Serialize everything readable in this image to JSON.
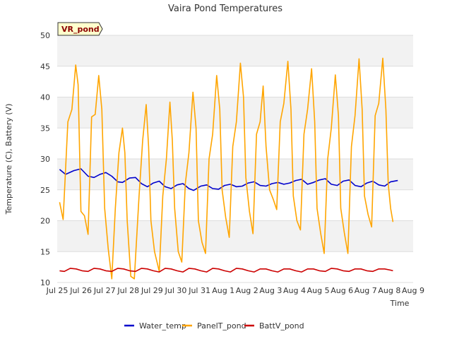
{
  "chart_data": {
    "type": "line",
    "title": "Vaira Pond Temperatures",
    "xlabel": "Time",
    "ylabel": "Temperature (C), Battery (V)",
    "site_label": "VR_pond",
    "ylim": [
      10,
      50
    ],
    "xlim": [
      0,
      15
    ],
    "yticks": [
      10,
      15,
      20,
      25,
      30,
      35,
      40,
      45,
      50
    ],
    "xticks": [
      {
        "x": 0,
        "label": "Jul 25"
      },
      {
        "x": 1,
        "label": "Jul 26"
      },
      {
        "x": 2,
        "label": "Jul 27"
      },
      {
        "x": 3,
        "label": "Jul 28"
      },
      {
        "x": 4,
        "label": "Jul 29"
      },
      {
        "x": 5,
        "label": "Jul 30"
      },
      {
        "x": 6,
        "label": "Jul 31"
      },
      {
        "x": 7,
        "label": "Aug 1"
      },
      {
        "x": 8,
        "label": "Aug 2"
      },
      {
        "x": 9,
        "label": "Aug 3"
      },
      {
        "x": 10,
        "label": "Aug 4"
      },
      {
        "x": 11,
        "label": "Aug 5"
      },
      {
        "x": 12,
        "label": "Aug 6"
      },
      {
        "x": 13,
        "label": "Aug 7"
      },
      {
        "x": 14,
        "label": "Aug 8"
      },
      {
        "x": 15,
        "label": "Aug 9"
      }
    ],
    "grid": true,
    "legend_position": "bottom",
    "series": [
      {
        "name": "Water_temp",
        "color": "#0000cc",
        "points": [
          [
            0.1,
            28.3
          ],
          [
            0.35,
            27.5
          ],
          [
            0.7,
            28.1
          ],
          [
            1.0,
            28.4
          ],
          [
            1.3,
            27.2
          ],
          [
            1.55,
            27.0
          ],
          [
            1.8,
            27.5
          ],
          [
            2.05,
            27.8
          ],
          [
            2.3,
            27.2
          ],
          [
            2.55,
            26.3
          ],
          [
            2.75,
            26.2
          ],
          [
            3.05,
            26.9
          ],
          [
            3.3,
            27.0
          ],
          [
            3.55,
            26.0
          ],
          [
            3.8,
            25.5
          ],
          [
            4.05,
            26.1
          ],
          [
            4.3,
            26.4
          ],
          [
            4.55,
            25.5
          ],
          [
            4.8,
            25.2
          ],
          [
            5.05,
            25.8
          ],
          [
            5.3,
            26.0
          ],
          [
            5.55,
            25.2
          ],
          [
            5.75,
            24.9
          ],
          [
            6.05,
            25.6
          ],
          [
            6.3,
            25.8
          ],
          [
            6.55,
            25.2
          ],
          [
            6.8,
            25.1
          ],
          [
            7.05,
            25.7
          ],
          [
            7.3,
            25.9
          ],
          [
            7.55,
            25.5
          ],
          [
            7.8,
            25.6
          ],
          [
            8.05,
            26.1
          ],
          [
            8.3,
            26.3
          ],
          [
            8.55,
            25.7
          ],
          [
            8.8,
            25.6
          ],
          [
            9.05,
            26.0
          ],
          [
            9.3,
            26.2
          ],
          [
            9.55,
            25.9
          ],
          [
            9.8,
            26.1
          ],
          [
            10.05,
            26.5
          ],
          [
            10.3,
            26.7
          ],
          [
            10.55,
            25.9
          ],
          [
            10.8,
            26.2
          ],
          [
            11.05,
            26.6
          ],
          [
            11.3,
            26.8
          ],
          [
            11.55,
            25.9
          ],
          [
            11.8,
            25.7
          ],
          [
            12.05,
            26.4
          ],
          [
            12.3,
            26.6
          ],
          [
            12.55,
            25.7
          ],
          [
            12.8,
            25.5
          ],
          [
            13.05,
            26.1
          ],
          [
            13.3,
            26.4
          ],
          [
            13.55,
            25.8
          ],
          [
            13.8,
            25.6
          ],
          [
            14.05,
            26.3
          ],
          [
            14.35,
            26.5
          ]
        ]
      },
      {
        "name": "PanelT_pond",
        "color": "#ffa500",
        "points": [
          [
            0.1,
            23.0
          ],
          [
            0.25,
            20.2
          ],
          [
            0.45,
            36.0
          ],
          [
            0.62,
            38.0
          ],
          [
            0.78,
            45.2
          ],
          [
            0.88,
            42.0
          ],
          [
            1.0,
            21.5
          ],
          [
            1.15,
            20.8
          ],
          [
            1.3,
            17.8
          ],
          [
            1.45,
            36.8
          ],
          [
            1.6,
            37.2
          ],
          [
            1.75,
            43.5
          ],
          [
            1.88,
            38.0
          ],
          [
            2.0,
            22.0
          ],
          [
            2.15,
            15.5
          ],
          [
            2.3,
            10.6
          ],
          [
            2.45,
            22.0
          ],
          [
            2.6,
            31.0
          ],
          [
            2.75,
            35.0
          ],
          [
            2.85,
            31.0
          ],
          [
            2.95,
            20.0
          ],
          [
            3.1,
            11.0
          ],
          [
            3.25,
            10.6
          ],
          [
            3.45,
            24.0
          ],
          [
            3.6,
            33.0
          ],
          [
            3.75,
            38.8
          ],
          [
            3.85,
            32.0
          ],
          [
            3.95,
            20.0
          ],
          [
            4.1,
            15.0
          ],
          [
            4.3,
            11.8
          ],
          [
            4.45,
            24.0
          ],
          [
            4.6,
            30.0
          ],
          [
            4.75,
            39.2
          ],
          [
            4.85,
            33.0
          ],
          [
            4.95,
            22.0
          ],
          [
            5.1,
            15.0
          ],
          [
            5.25,
            13.3
          ],
          [
            5.4,
            26.0
          ],
          [
            5.55,
            31.0
          ],
          [
            5.72,
            40.8
          ],
          [
            5.85,
            35.0
          ],
          [
            5.95,
            20.0
          ],
          [
            6.1,
            16.5
          ],
          [
            6.25,
            14.7
          ],
          [
            6.4,
            30.0
          ],
          [
            6.55,
            34.0
          ],
          [
            6.72,
            43.5
          ],
          [
            6.85,
            38.0
          ],
          [
            6.95,
            25.0
          ],
          [
            7.1,
            20.5
          ],
          [
            7.25,
            17.3
          ],
          [
            7.4,
            32.0
          ],
          [
            7.55,
            36.0
          ],
          [
            7.72,
            45.5
          ],
          [
            7.85,
            40.0
          ],
          [
            7.95,
            27.0
          ],
          [
            8.1,
            21.5
          ],
          [
            8.25,
            17.9
          ],
          [
            8.4,
            34.0
          ],
          [
            8.55,
            36.0
          ],
          [
            8.68,
            41.8
          ],
          [
            8.8,
            32.0
          ],
          [
            8.95,
            25.0
          ],
          [
            9.1,
            23.5
          ],
          [
            9.25,
            21.8
          ],
          [
            9.4,
            36.0
          ],
          [
            9.55,
            39.0
          ],
          [
            9.72,
            45.8
          ],
          [
            9.85,
            38.0
          ],
          [
            9.95,
            24.0
          ],
          [
            10.1,
            20.0
          ],
          [
            10.25,
            18.5
          ],
          [
            10.4,
            34.0
          ],
          [
            10.55,
            38.0
          ],
          [
            10.72,
            44.6
          ],
          [
            10.85,
            36.0
          ],
          [
            10.95,
            22.0
          ],
          [
            11.1,
            18.0
          ],
          [
            11.25,
            14.7
          ],
          [
            11.4,
            30.0
          ],
          [
            11.55,
            35.0
          ],
          [
            11.72,
            43.6
          ],
          [
            11.85,
            37.0
          ],
          [
            11.95,
            22.0
          ],
          [
            12.1,
            18.0
          ],
          [
            12.25,
            14.7
          ],
          [
            12.4,
            32.0
          ],
          [
            12.55,
            37.0
          ],
          [
            12.72,
            46.2
          ],
          [
            12.85,
            38.0
          ],
          [
            12.95,
            24.0
          ],
          [
            13.1,
            21.0
          ],
          [
            13.25,
            19.0
          ],
          [
            13.4,
            37.0
          ],
          [
            13.55,
            39.0
          ],
          [
            13.72,
            46.3
          ],
          [
            13.85,
            38.0
          ],
          [
            13.95,
            26.0
          ],
          [
            14.05,
            22.0
          ],
          [
            14.15,
            19.8
          ]
        ]
      },
      {
        "name": "BattV_pond",
        "color": "#cc0000",
        "points": [
          [
            0.1,
            11.9
          ],
          [
            0.3,
            11.8
          ],
          [
            0.55,
            12.3
          ],
          [
            0.8,
            12.2
          ],
          [
            1.05,
            11.9
          ],
          [
            1.3,
            11.8
          ],
          [
            1.55,
            12.3
          ],
          [
            1.8,
            12.2
          ],
          [
            2.05,
            11.9
          ],
          [
            2.3,
            11.8
          ],
          [
            2.55,
            12.3
          ],
          [
            2.8,
            12.2
          ],
          [
            3.05,
            11.9
          ],
          [
            3.3,
            11.8
          ],
          [
            3.55,
            12.3
          ],
          [
            3.8,
            12.2
          ],
          [
            4.05,
            11.9
          ],
          [
            4.3,
            11.7
          ],
          [
            4.55,
            12.3
          ],
          [
            4.8,
            12.2
          ],
          [
            5.05,
            11.9
          ],
          [
            5.3,
            11.7
          ],
          [
            5.55,
            12.3
          ],
          [
            5.8,
            12.2
          ],
          [
            6.05,
            11.9
          ],
          [
            6.3,
            11.7
          ],
          [
            6.55,
            12.3
          ],
          [
            6.8,
            12.2
          ],
          [
            7.05,
            11.9
          ],
          [
            7.3,
            11.7
          ],
          [
            7.55,
            12.3
          ],
          [
            7.8,
            12.2
          ],
          [
            8.05,
            11.9
          ],
          [
            8.3,
            11.7
          ],
          [
            8.55,
            12.2
          ],
          [
            8.8,
            12.2
          ],
          [
            9.05,
            11.9
          ],
          [
            9.3,
            11.7
          ],
          [
            9.55,
            12.2
          ],
          [
            9.8,
            12.2
          ],
          [
            10.05,
            11.9
          ],
          [
            10.3,
            11.7
          ],
          [
            10.55,
            12.2
          ],
          [
            10.8,
            12.2
          ],
          [
            11.05,
            11.9
          ],
          [
            11.3,
            11.8
          ],
          [
            11.55,
            12.3
          ],
          [
            11.8,
            12.2
          ],
          [
            12.05,
            11.9
          ],
          [
            12.3,
            11.8
          ],
          [
            12.55,
            12.2
          ],
          [
            12.8,
            12.2
          ],
          [
            13.05,
            11.9
          ],
          [
            13.3,
            11.8
          ],
          [
            13.55,
            12.2
          ],
          [
            13.8,
            12.2
          ],
          [
            14.05,
            12.0
          ],
          [
            14.15,
            11.9
          ]
        ]
      }
    ]
  }
}
